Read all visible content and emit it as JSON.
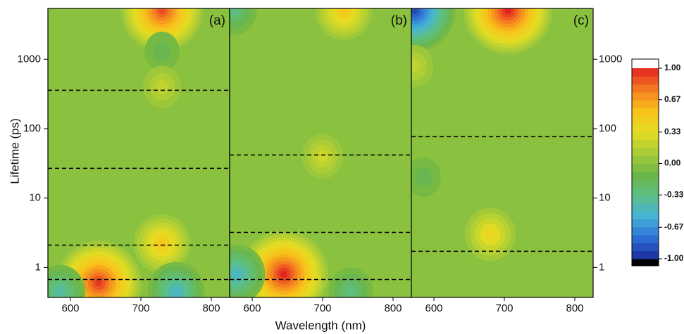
{
  "chart_data": {
    "type": "contour",
    "xlabel": "Wavelength (nm)",
    "ylabel": "Lifetime (ps)",
    "xlim": [
      568,
      826
    ],
    "xticks": [
      600,
      700,
      800
    ],
    "ylim": [
      0.37,
      5400
    ],
    "yticks": [
      1,
      10,
      100,
      1000
    ],
    "log_y": true,
    "dashed_line_color": "#000000",
    "panels": [
      {
        "label": "(a)",
        "dashed_lines": [
          357,
          26.8,
          2.1,
          0.67
        ],
        "features": [
          {
            "wavelength": 730,
            "lifetime": 5000,
            "amplitude": 0.9
          },
          {
            "wavelength": 640,
            "lifetime": 0.6,
            "amplitude": 0.95
          },
          {
            "wavelength": 730,
            "lifetime": 2.2,
            "amplitude": 0.5
          },
          {
            "wavelength": 750,
            "lifetime": 0.45,
            "amplitude": -0.5
          },
          {
            "wavelength": 585,
            "lifetime": 0.45,
            "amplitude": -0.4
          },
          {
            "wavelength": 730,
            "lifetime": 1300,
            "amplitude": -0.15
          },
          {
            "wavelength": 730,
            "lifetime": 400,
            "amplitude": 0.2
          }
        ]
      },
      {
        "label": "(b)",
        "dashed_lines": [
          41.8,
          3.2,
          0.67
        ],
        "features": [
          {
            "wavelength": 645,
            "lifetime": 0.8,
            "amplitude": 1.0
          },
          {
            "wavelength": 578,
            "lifetime": 0.8,
            "amplitude": -0.5
          },
          {
            "wavelength": 730,
            "lifetime": 5000,
            "amplitude": 0.5
          },
          {
            "wavelength": 575,
            "lifetime": 5000,
            "amplitude": -0.3
          },
          {
            "wavelength": 700,
            "lifetime": 40,
            "amplitude": 0.25
          },
          {
            "wavelength": 740,
            "lifetime": 0.45,
            "amplitude": -0.3
          }
        ]
      },
      {
        "label": "(c)",
        "dashed_lines": [
          76.6,
          1.71
        ],
        "features": [
          {
            "wavelength": 572,
            "lifetime": 5000,
            "amplitude": -0.9
          },
          {
            "wavelength": 705,
            "lifetime": 5000,
            "amplitude": 1.0
          },
          {
            "wavelength": 572,
            "lifetime": 800,
            "amplitude": 0.2
          },
          {
            "wavelength": 680,
            "lifetime": 3,
            "amplitude": 0.4
          },
          {
            "wavelength": 585,
            "lifetime": 20,
            "amplitude": -0.15
          }
        ]
      }
    ],
    "colorbar": {
      "lim": [
        -1,
        1
      ],
      "ticks": [
        {
          "value": 1,
          "label": "1.00"
        },
        {
          "value": 0.67,
          "label": "0.67"
        },
        {
          "value": 0.33,
          "label": "0.33"
        },
        {
          "value": 0,
          "label": "0.00"
        },
        {
          "value": -0.33,
          "label": "-0.33"
        },
        {
          "value": -0.67,
          "label": "-0.67"
        },
        {
          "value": -1,
          "label": "-1.00"
        }
      ],
      "colors": [
        "#1b2c9a",
        "#2d6fd6",
        "#45b3d8",
        "#5cbf86",
        "#6cb545",
        "#a8cc38",
        "#e5dd22",
        "#f9c21b",
        "#f47c20",
        "#e3221f"
      ],
      "under_color": "#000000",
      "over_color": "#ffffff"
    }
  }
}
